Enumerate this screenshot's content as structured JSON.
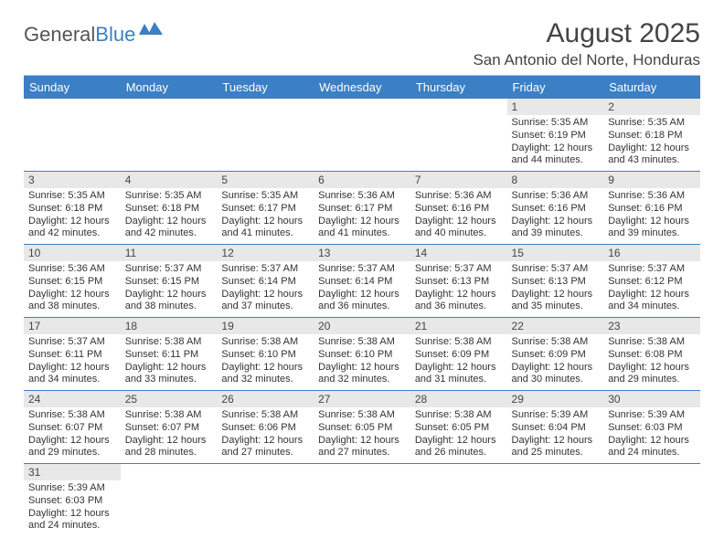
{
  "logo": {
    "text1": "General",
    "text2": "Blue"
  },
  "title": "August 2025",
  "location": "San Antonio del Norte, Honduras",
  "colors": {
    "headerBg": "#3b7fc4",
    "dayNumBg": "#e8e8e8",
    "rowBorder": "#3b7fc4"
  },
  "weekdays": [
    "Sunday",
    "Monday",
    "Tuesday",
    "Wednesday",
    "Thursday",
    "Friday",
    "Saturday"
  ],
  "weeks": [
    [
      null,
      null,
      null,
      null,
      null,
      {
        "n": "1",
        "sunrise": "5:35 AM",
        "sunset": "6:19 PM",
        "dayh": "12",
        "daym": "44"
      },
      {
        "n": "2",
        "sunrise": "5:35 AM",
        "sunset": "6:18 PM",
        "dayh": "12",
        "daym": "43"
      }
    ],
    [
      {
        "n": "3",
        "sunrise": "5:35 AM",
        "sunset": "6:18 PM",
        "dayh": "12",
        "daym": "42"
      },
      {
        "n": "4",
        "sunrise": "5:35 AM",
        "sunset": "6:18 PM",
        "dayh": "12",
        "daym": "42"
      },
      {
        "n": "5",
        "sunrise": "5:35 AM",
        "sunset": "6:17 PM",
        "dayh": "12",
        "daym": "41"
      },
      {
        "n": "6",
        "sunrise": "5:36 AM",
        "sunset": "6:17 PM",
        "dayh": "12",
        "daym": "41"
      },
      {
        "n": "7",
        "sunrise": "5:36 AM",
        "sunset": "6:16 PM",
        "dayh": "12",
        "daym": "40"
      },
      {
        "n": "8",
        "sunrise": "5:36 AM",
        "sunset": "6:16 PM",
        "dayh": "12",
        "daym": "39"
      },
      {
        "n": "9",
        "sunrise": "5:36 AM",
        "sunset": "6:16 PM",
        "dayh": "12",
        "daym": "39"
      }
    ],
    [
      {
        "n": "10",
        "sunrise": "5:36 AM",
        "sunset": "6:15 PM",
        "dayh": "12",
        "daym": "38"
      },
      {
        "n": "11",
        "sunrise": "5:37 AM",
        "sunset": "6:15 PM",
        "dayh": "12",
        "daym": "38"
      },
      {
        "n": "12",
        "sunrise": "5:37 AM",
        "sunset": "6:14 PM",
        "dayh": "12",
        "daym": "37"
      },
      {
        "n": "13",
        "sunrise": "5:37 AM",
        "sunset": "6:14 PM",
        "dayh": "12",
        "daym": "36"
      },
      {
        "n": "14",
        "sunrise": "5:37 AM",
        "sunset": "6:13 PM",
        "dayh": "12",
        "daym": "36"
      },
      {
        "n": "15",
        "sunrise": "5:37 AM",
        "sunset": "6:13 PM",
        "dayh": "12",
        "daym": "35"
      },
      {
        "n": "16",
        "sunrise": "5:37 AM",
        "sunset": "6:12 PM",
        "dayh": "12",
        "daym": "34"
      }
    ],
    [
      {
        "n": "17",
        "sunrise": "5:37 AM",
        "sunset": "6:11 PM",
        "dayh": "12",
        "daym": "34"
      },
      {
        "n": "18",
        "sunrise": "5:38 AM",
        "sunset": "6:11 PM",
        "dayh": "12",
        "daym": "33"
      },
      {
        "n": "19",
        "sunrise": "5:38 AM",
        "sunset": "6:10 PM",
        "dayh": "12",
        "daym": "32"
      },
      {
        "n": "20",
        "sunrise": "5:38 AM",
        "sunset": "6:10 PM",
        "dayh": "12",
        "daym": "32"
      },
      {
        "n": "21",
        "sunrise": "5:38 AM",
        "sunset": "6:09 PM",
        "dayh": "12",
        "daym": "31"
      },
      {
        "n": "22",
        "sunrise": "5:38 AM",
        "sunset": "6:09 PM",
        "dayh": "12",
        "daym": "30"
      },
      {
        "n": "23",
        "sunrise": "5:38 AM",
        "sunset": "6:08 PM",
        "dayh": "12",
        "daym": "29"
      }
    ],
    [
      {
        "n": "24",
        "sunrise": "5:38 AM",
        "sunset": "6:07 PM",
        "dayh": "12",
        "daym": "29"
      },
      {
        "n": "25",
        "sunrise": "5:38 AM",
        "sunset": "6:07 PM",
        "dayh": "12",
        "daym": "28"
      },
      {
        "n": "26",
        "sunrise": "5:38 AM",
        "sunset": "6:06 PM",
        "dayh": "12",
        "daym": "27"
      },
      {
        "n": "27",
        "sunrise": "5:38 AM",
        "sunset": "6:05 PM",
        "dayh": "12",
        "daym": "27"
      },
      {
        "n": "28",
        "sunrise": "5:38 AM",
        "sunset": "6:05 PM",
        "dayh": "12",
        "daym": "26"
      },
      {
        "n": "29",
        "sunrise": "5:39 AM",
        "sunset": "6:04 PM",
        "dayh": "12",
        "daym": "25"
      },
      {
        "n": "30",
        "sunrise": "5:39 AM",
        "sunset": "6:03 PM",
        "dayh": "12",
        "daym": "24"
      }
    ],
    [
      {
        "n": "31",
        "sunrise": "5:39 AM",
        "sunset": "6:03 PM",
        "dayh": "12",
        "daym": "24"
      },
      null,
      null,
      null,
      null,
      null,
      null
    ]
  ]
}
